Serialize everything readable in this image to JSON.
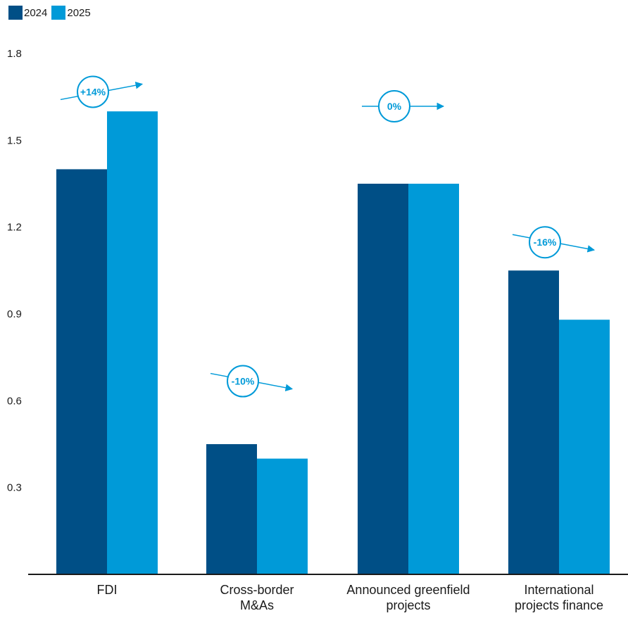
{
  "colors": {
    "s2024": "#004f86",
    "s2025": "#009ad8",
    "axis": "#1a1a1a",
    "text": "#1a1a1a"
  },
  "legend": {
    "items": [
      {
        "label": "2024"
      },
      {
        "label": "2025"
      }
    ]
  },
  "chart_data": {
    "type": "bar",
    "title": "",
    "xlabel": "",
    "ylabel": "",
    "ylim": [
      0,
      1.8
    ],
    "yticks": [
      "0.3",
      "0.6",
      "0.9",
      "1.2",
      "1.5",
      "1.8"
    ],
    "grid": false,
    "legend_position": "top-left",
    "categories": [
      [
        "FDI"
      ],
      [
        "Cross-border",
        "M&As"
      ],
      [
        "Announced greenfield",
        "projects"
      ],
      [
        "International",
        "projects finance"
      ]
    ],
    "series": [
      {
        "name": "2024",
        "values": [
          1.4,
          0.45,
          1.35,
          1.05
        ]
      },
      {
        "name": "2025",
        "values": [
          1.6,
          0.4,
          1.35,
          0.88
        ]
      }
    ],
    "annotations": [
      {
        "label": "+14%",
        "direction": "up"
      },
      {
        "label": "-10%",
        "direction": "down"
      },
      {
        "label": "0%",
        "direction": "flat"
      },
      {
        "label": "-16%",
        "direction": "down"
      }
    ]
  }
}
